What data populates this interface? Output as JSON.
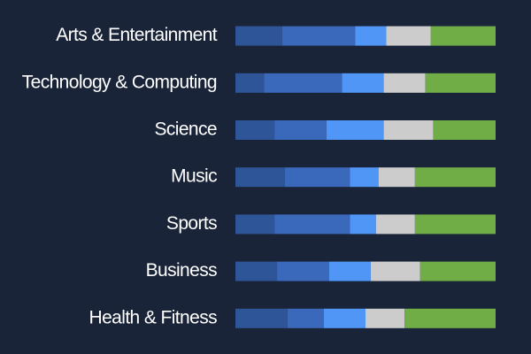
{
  "chart_data": {
    "type": "stacked-barh",
    "categories": [
      "Arts & Entertainment",
      "Technology & Computing",
      "Science",
      "Music",
      "Sports",
      "Business",
      "Health & Fitness"
    ],
    "series": [
      {
        "color": "#2e5597",
        "values": [
          18,
          11,
          15,
          19,
          15,
          16,
          20
        ]
      },
      {
        "color": "#3a68bb",
        "values": [
          28,
          30,
          20,
          25,
          29,
          20,
          14
        ]
      },
      {
        "color": "#4f96f7",
        "values": [
          12,
          16,
          22,
          11,
          10,
          16,
          16
        ]
      },
      {
        "color": "#cccccc",
        "values": [
          17,
          16,
          19,
          14,
          15,
          19,
          15
        ]
      },
      {
        "color": "#70ad47",
        "values": [
          25,
          27,
          24,
          31,
          31,
          29,
          35
        ]
      }
    ],
    "xlim": [
      0,
      100
    ]
  }
}
